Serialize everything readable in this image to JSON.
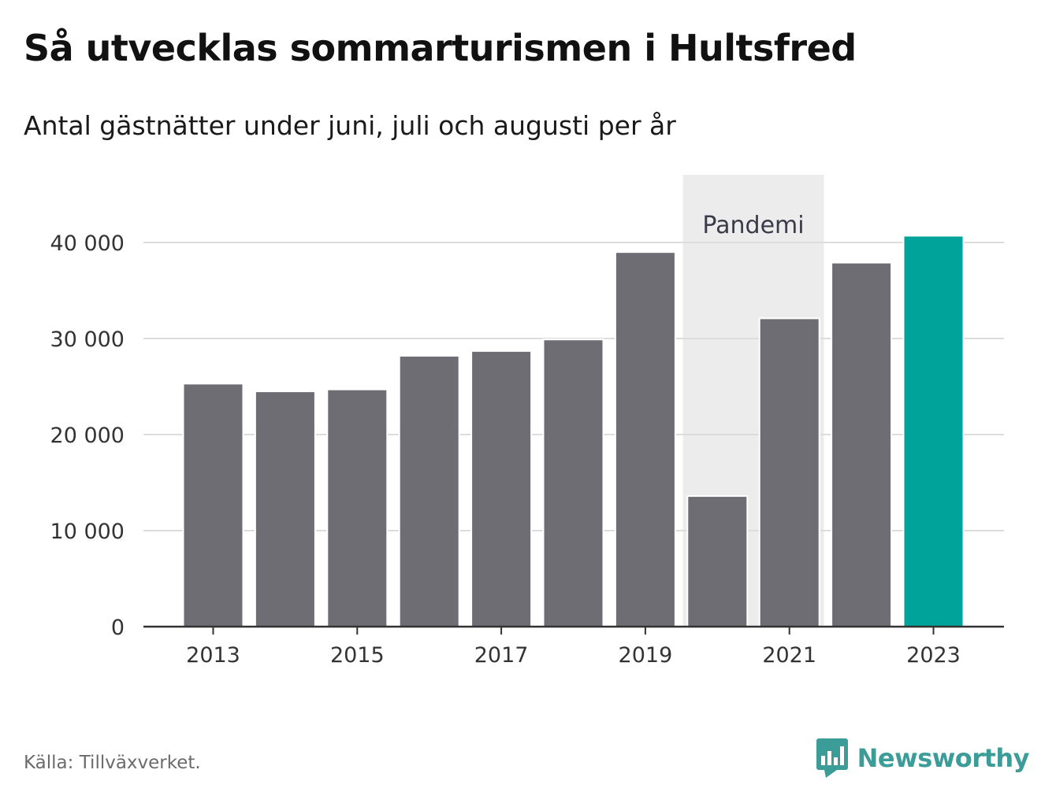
{
  "header": {
    "title": "Så utvecklas sommarturismen i Hultsfred",
    "subtitle": "Antal gästnätter under juni, juli och augusti per år"
  },
  "footer": {
    "source": "Källa: Tillväxverket.",
    "brand": "Newsworthy",
    "brand_icon": "newsworthy-logo-icon"
  },
  "colors": {
    "bar": "#6e6d73",
    "highlight": "#00a39a",
    "shade": "#ececec",
    "grid": "#dcdcdc",
    "axis": "#333333",
    "brand": "#3b9c98"
  },
  "chart_data": {
    "type": "bar",
    "categories": [
      "2013",
      "2014",
      "2015",
      "2016",
      "2017",
      "2018",
      "2019",
      "2020",
      "2021",
      "2022",
      "2023"
    ],
    "values": [
      25300,
      24500,
      24700,
      28200,
      28700,
      29900,
      39000,
      13600,
      32100,
      37900,
      40700
    ],
    "highlight_category": "2023",
    "x_tick_labels": [
      "2013",
      "2015",
      "2017",
      "2019",
      "2021",
      "2023"
    ],
    "y_ticks": [
      0,
      10000,
      20000,
      30000,
      40000
    ],
    "y_tick_labels": [
      "0",
      "10 000",
      "20 000",
      "30 000",
      "40 000"
    ],
    "ylim": [
      0,
      46000
    ],
    "xlabel": "",
    "ylabel": "",
    "grid": true,
    "annotation": {
      "label": "Pandemi",
      "from": "2020",
      "to": "2021"
    }
  }
}
